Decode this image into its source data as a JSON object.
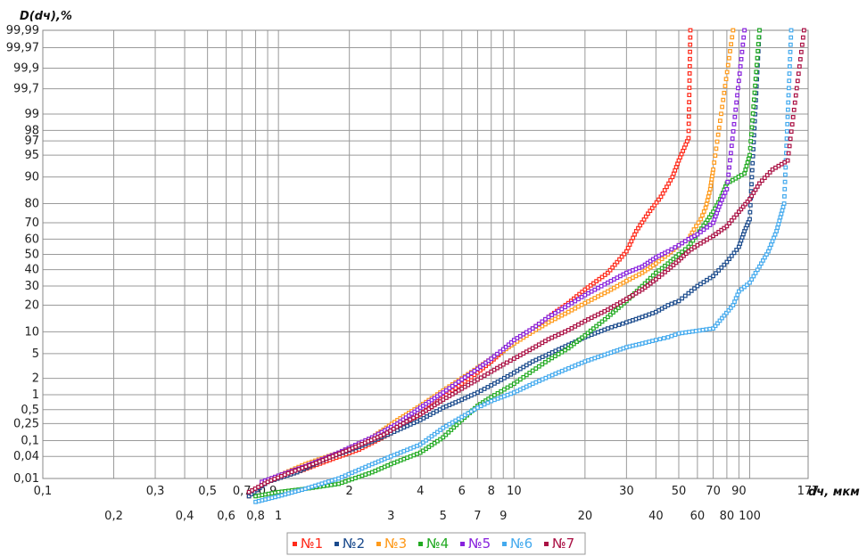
{
  "chart_data": {
    "type": "scatter",
    "title": "",
    "ylabel": "D(dч),%",
    "xlabel": "dч, мкм",
    "x_scale": "log",
    "y_scale": "probability",
    "xlim": [
      0.1,
      177
    ],
    "ylim": [
      0.01,
      99.99
    ],
    "grid": true,
    "legend_position": "bottom-center",
    "x_tick_labels_row1": [
      "0,1",
      "0,3",
      "0,5",
      "0,7",
      "0,9",
      "2",
      "4",
      "6",
      "8",
      "10",
      "30",
      "50",
      "70",
      "90",
      "177"
    ],
    "x_tick_labels_row2": [
      "0,2",
      "0,4",
      "0,6",
      "0,8",
      "1",
      "3",
      "5",
      "7",
      "9",
      "20",
      "40",
      "60",
      "80",
      "100"
    ],
    "y_tick_labels": [
      "99,99",
      "99,97",
      "99,9",
      "99,7",
      "99",
      "98",
      "97",
      "95",
      "90",
      "80",
      "70",
      "60",
      "50",
      "40",
      "30",
      "20",
      "10",
      "5",
      "2",
      "1",
      "0,5",
      "0,25",
      "0,1",
      "0,04",
      "0,01"
    ],
    "series": [
      {
        "name": "№1",
        "color": "#ff2a1a",
        "points": [
          [
            0.75,
            0.003
          ],
          [
            0.9,
            0.008
          ],
          [
            1.2,
            0.015
          ],
          [
            1.6,
            0.03
          ],
          [
            2.2,
            0.06
          ],
          [
            3,
            0.15
          ],
          [
            4,
            0.4
          ],
          [
            5,
            0.9
          ],
          [
            6,
            1.6
          ],
          [
            7,
            2.5
          ],
          [
            8,
            3.8
          ],
          [
            9,
            5.5
          ],
          [
            10,
            7.5
          ],
          [
            12,
            11
          ],
          [
            14,
            15
          ],
          [
            17,
            21
          ],
          [
            20,
            28
          ],
          [
            25,
            38
          ],
          [
            30,
            52
          ],
          [
            33,
            65
          ],
          [
            37,
            75
          ],
          [
            42,
            83
          ],
          [
            47,
            90
          ],
          [
            50,
            94
          ],
          [
            55,
            97.3
          ],
          [
            56,
            99.99
          ]
        ]
      },
      {
        "name": "№2",
        "color": "#1a4a8c",
        "points": [
          [
            0.75,
            0.003
          ],
          [
            0.9,
            0.008
          ],
          [
            1.2,
            0.015
          ],
          [
            1.6,
            0.035
          ],
          [
            2.2,
            0.07
          ],
          [
            3,
            0.15
          ],
          [
            4,
            0.3
          ],
          [
            5,
            0.55
          ],
          [
            6,
            0.8
          ],
          [
            7,
            1.1
          ],
          [
            8,
            1.5
          ],
          [
            10,
            2.5
          ],
          [
            12,
            3.8
          ],
          [
            15,
            5.5
          ],
          [
            20,
            8.5
          ],
          [
            25,
            11
          ],
          [
            30,
            13
          ],
          [
            35,
            15
          ],
          [
            40,
            17
          ],
          [
            45,
            20
          ],
          [
            50,
            22
          ],
          [
            55,
            26
          ],
          [
            60,
            30
          ],
          [
            70,
            36
          ],
          [
            80,
            45
          ],
          [
            90,
            55
          ],
          [
            95,
            65
          ],
          [
            100,
            72
          ],
          [
            110,
            99.99
          ]
        ]
      },
      {
        "name": "№3",
        "color": "#ff9a1a",
        "points": [
          [
            0.85,
            0.008
          ],
          [
            1.0,
            0.012
          ],
          [
            1.3,
            0.025
          ],
          [
            1.8,
            0.05
          ],
          [
            2.5,
            0.12
          ],
          [
            3.2,
            0.3
          ],
          [
            4,
            0.6
          ],
          [
            5,
            1.2
          ],
          [
            6,
            2
          ],
          [
            7,
            3
          ],
          [
            8,
            4.2
          ],
          [
            9,
            5.5
          ],
          [
            10,
            7
          ],
          [
            12,
            10
          ],
          [
            14,
            13
          ],
          [
            17,
            17
          ],
          [
            20,
            21
          ],
          [
            25,
            27
          ],
          [
            30,
            33
          ],
          [
            35,
            38
          ],
          [
            40,
            44
          ],
          [
            45,
            50
          ],
          [
            50,
            56
          ],
          [
            55,
            60
          ],
          [
            58,
            66
          ],
          [
            62,
            72
          ],
          [
            65,
            78
          ],
          [
            68,
            86
          ],
          [
            70,
            92
          ],
          [
            85,
            99.99
          ]
        ]
      },
      {
        "name": "№4",
        "color": "#22aa22",
        "points": [
          [
            0.8,
            0.003
          ],
          [
            1.0,
            0.004
          ],
          [
            1.3,
            0.005
          ],
          [
            1.8,
            0.007
          ],
          [
            2.5,
            0.015
          ],
          [
            3,
            0.025
          ],
          [
            4,
            0.05
          ],
          [
            5,
            0.12
          ],
          [
            6,
            0.3
          ],
          [
            7,
            0.6
          ],
          [
            8,
            0.9
          ],
          [
            10,
            1.6
          ],
          [
            12,
            2.7
          ],
          [
            14,
            4
          ],
          [
            17,
            6
          ],
          [
            20,
            9
          ],
          [
            25,
            15
          ],
          [
            30,
            22
          ],
          [
            35,
            30
          ],
          [
            40,
            38
          ],
          [
            45,
            44
          ],
          [
            50,
            50
          ],
          [
            55,
            55
          ],
          [
            60,
            63
          ],
          [
            65,
            70
          ],
          [
            70,
            76
          ],
          [
            75,
            82
          ],
          [
            80,
            88
          ],
          [
            95,
            91
          ],
          [
            100,
            95
          ],
          [
            110,
            99.99
          ]
        ]
      },
      {
        "name": "№5",
        "color": "#8822dd",
        "points": [
          [
            0.85,
            0.008
          ],
          [
            1.0,
            0.012
          ],
          [
            1.3,
            0.022
          ],
          [
            1.8,
            0.05
          ],
          [
            2.5,
            0.12
          ],
          [
            3.2,
            0.25
          ],
          [
            4,
            0.55
          ],
          [
            5,
            1.1
          ],
          [
            6,
            1.9
          ],
          [
            7,
            2.9
          ],
          [
            8,
            4.2
          ],
          [
            9,
            5.8
          ],
          [
            10,
            7.8
          ],
          [
            12,
            11
          ],
          [
            14,
            15
          ],
          [
            17,
            20
          ],
          [
            20,
            25
          ],
          [
            25,
            32
          ],
          [
            30,
            38
          ],
          [
            35,
            42
          ],
          [
            40,
            48
          ],
          [
            45,
            52
          ],
          [
            50,
            56
          ],
          [
            55,
            60
          ],
          [
            60,
            63
          ],
          [
            70,
            70
          ],
          [
            75,
            80
          ],
          [
            80,
            86
          ],
          [
            95,
            99.99
          ]
        ]
      },
      {
        "name": "№6",
        "color": "#44aaee",
        "points": [
          [
            0.8,
            0.002
          ],
          [
            1.0,
            0.003
          ],
          [
            1.3,
            0.005
          ],
          [
            1.8,
            0.01
          ],
          [
            2.5,
            0.025
          ],
          [
            3,
            0.04
          ],
          [
            4,
            0.08
          ],
          [
            5,
            0.2
          ],
          [
            6,
            0.35
          ],
          [
            7,
            0.55
          ],
          [
            8,
            0.75
          ],
          [
            10,
            1.1
          ],
          [
            12,
            1.6
          ],
          [
            15,
            2.4
          ],
          [
            20,
            3.8
          ],
          [
            25,
            5
          ],
          [
            30,
            6.2
          ],
          [
            35,
            7
          ],
          [
            40,
            7.8
          ],
          [
            45,
            8.5
          ],
          [
            50,
            9.5
          ],
          [
            70,
            11
          ],
          [
            85,
            20
          ],
          [
            90,
            27
          ],
          [
            100,
            32
          ],
          [
            110,
            42
          ],
          [
            120,
            52
          ],
          [
            130,
            65
          ],
          [
            140,
            80
          ],
          [
            150,
            99.99
          ]
        ]
      },
      {
        "name": "№7",
        "color": "#aa1144",
        "points": [
          [
            0.75,
            0.004
          ],
          [
            0.9,
            0.008
          ],
          [
            1.1,
            0.014
          ],
          [
            1.4,
            0.025
          ],
          [
            2,
            0.06
          ],
          [
            2.8,
            0.14
          ],
          [
            3.5,
            0.28
          ],
          [
            4,
            0.4
          ],
          [
            5,
            0.8
          ],
          [
            6,
            1.3
          ],
          [
            7,
            1.9
          ],
          [
            8,
            2.6
          ],
          [
            9,
            3.4
          ],
          [
            10,
            4.2
          ],
          [
            12,
            6
          ],
          [
            14,
            8
          ],
          [
            17,
            10.5
          ],
          [
            20,
            13.5
          ],
          [
            25,
            18
          ],
          [
            30,
            23
          ],
          [
            35,
            28
          ],
          [
            40,
            34
          ],
          [
            45,
            40
          ],
          [
            50,
            46
          ],
          [
            55,
            52
          ],
          [
            60,
            56
          ],
          [
            70,
            62
          ],
          [
            80,
            68
          ],
          [
            90,
            76
          ],
          [
            100,
            82
          ],
          [
            110,
            88
          ],
          [
            125,
            92
          ],
          [
            145,
            94
          ],
          [
            170,
            99.99
          ]
        ]
      }
    ]
  }
}
